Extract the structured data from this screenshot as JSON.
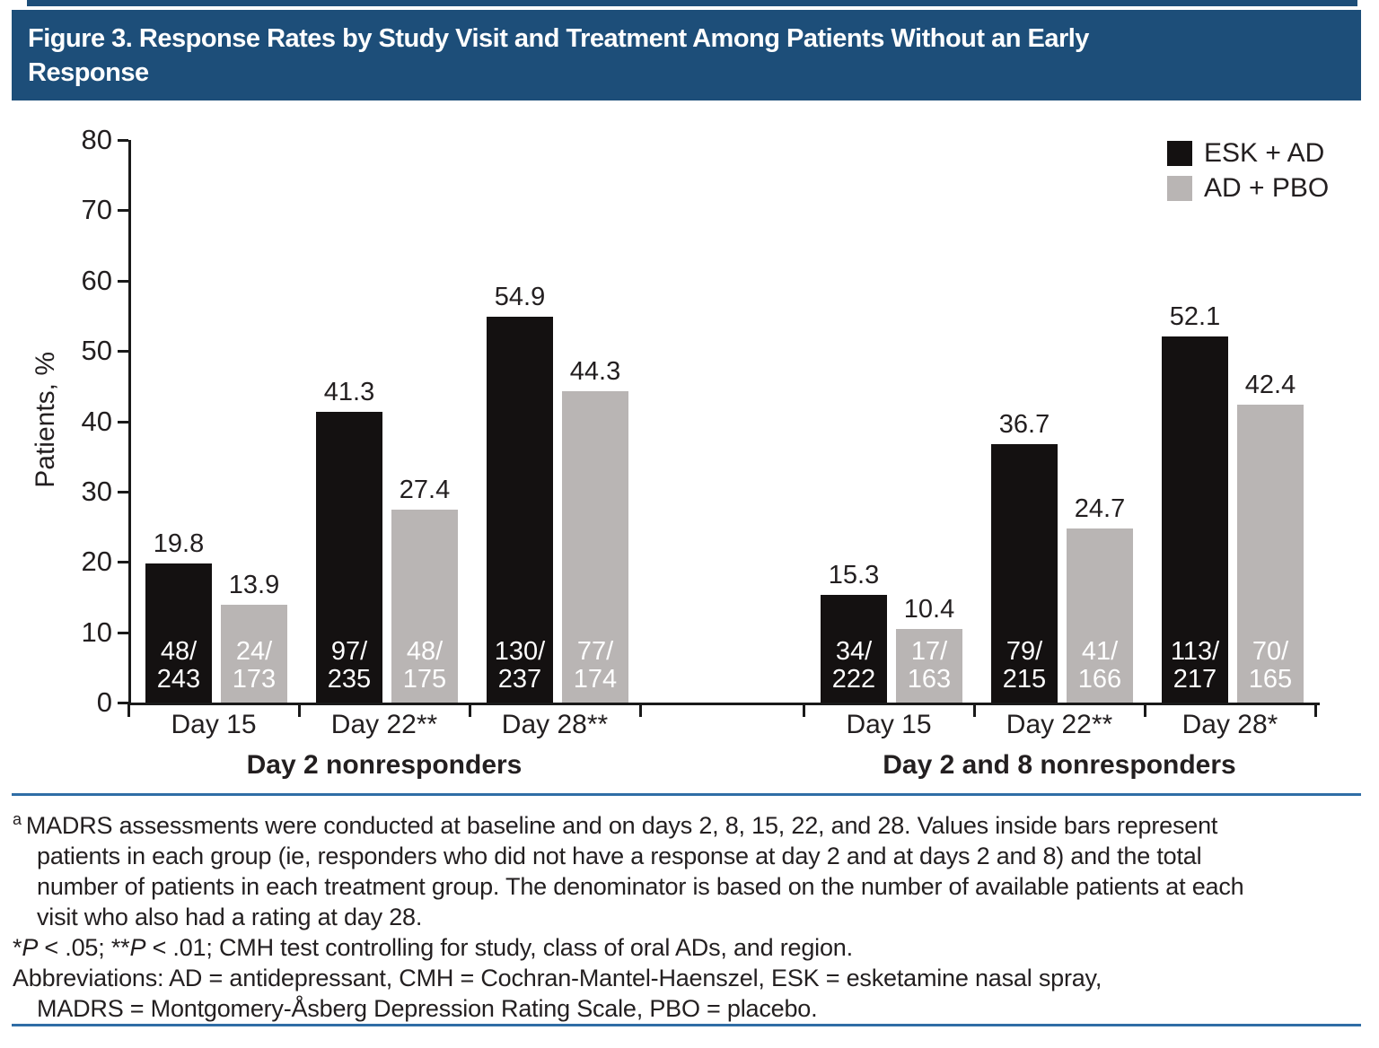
{
  "figure": {
    "title": "Figure 3. Response Rates by Study Visit and Treatment Among Patients Without an Early Response",
    "title_lines": [
      "Figure 3. Response Rates by Study Visit and Treatment Among Patients Without an Early",
      "Response"
    ]
  },
  "colors": {
    "title_bar_blue": "#1d4e79",
    "rule_blue": "#2f6da6",
    "bar_black": "#141111",
    "bar_gray": "#b9b5b4",
    "text_dark": "#231f20"
  },
  "legend": {
    "items": [
      {
        "label": "ESK + AD",
        "color": "#141111"
      },
      {
        "label": "AD + PBO",
        "color": "#b9b5b4"
      }
    ]
  },
  "chart_data": {
    "type": "bar",
    "title": "",
    "xlabel": "",
    "ylabel": "Patients, %",
    "ylim": [
      0,
      80
    ],
    "ytick_step": 10,
    "yticks": [
      0,
      10,
      20,
      30,
      40,
      50,
      60,
      70,
      80
    ],
    "grid": false,
    "legend_position": "top-right",
    "series_names": [
      "ESK + AD",
      "AD + PBO"
    ],
    "groups": [
      {
        "label": "Day 2 nonresponders",
        "visits": [
          {
            "label": "Day 15",
            "bars": [
              {
                "series": "ESK + AD",
                "value": 19.8,
                "label_lines": [
                  "48/",
                  "243"
                ]
              },
              {
                "series": "AD + PBO",
                "value": 13.9,
                "label_lines": [
                  "24/",
                  "173"
                ]
              }
            ]
          },
          {
            "label": "Day 22**",
            "bars": [
              {
                "series": "ESK + AD",
                "value": 41.3,
                "label_lines": [
                  "97/",
                  "235"
                ]
              },
              {
                "series": "AD + PBO",
                "value": 27.4,
                "label_lines": [
                  "48/",
                  "175"
                ]
              }
            ]
          },
          {
            "label": "Day 28**",
            "bars": [
              {
                "series": "ESK + AD",
                "value": 54.9,
                "label_lines": [
                  "130/",
                  "237"
                ]
              },
              {
                "series": "AD + PBO",
                "value": 44.3,
                "label_lines": [
                  "77/",
                  "174"
                ]
              }
            ]
          }
        ]
      },
      {
        "label": "Day 2 and 8 nonresponders",
        "visits": [
          {
            "label": "Day 15",
            "bars": [
              {
                "series": "ESK + AD",
                "value": 15.3,
                "label_lines": [
                  "34/",
                  "222"
                ]
              },
              {
                "series": "AD + PBO",
                "value": 10.4,
                "label_lines": [
                  "17/",
                  "163"
                ]
              }
            ]
          },
          {
            "label": "Day 22**",
            "bars": [
              {
                "series": "ESK + AD",
                "value": 36.7,
                "label_lines": [
                  "79/",
                  "215"
                ]
              },
              {
                "series": "AD + PBO",
                "value": 24.7,
                "label_lines": [
                  "41/",
                  "166"
                ]
              }
            ]
          },
          {
            "label": "Day 28*",
            "bars": [
              {
                "series": "ESK + AD",
                "value": 52.1,
                "label_lines": [
                  "113/",
                  "217"
                ]
              },
              {
                "series": "AD + PBO",
                "value": 42.4,
                "label_lines": [
                  "70/",
                  "165"
                ]
              }
            ]
          }
        ]
      }
    ]
  },
  "footnotes": {
    "note_a_marker": "a",
    "note_a_lines": [
      "MADRS assessments were conducted at baseline and on days 2, 8, 15, 22, and 28. Values inside bars represent",
      "patients in each group (ie, responders who did not have a response at day 2 and at days 2 and 8) and the total",
      "number of patients in each treatment group. The denominator is based on the number of available patients at each",
      "visit who also had a rating at day 28."
    ],
    "stats_note_segments": [
      {
        "text": "*"
      },
      {
        "text": "P",
        "italic": true
      },
      {
        "text": " < .05; **"
      },
      {
        "text": "P",
        "italic": true
      },
      {
        "text": " < .01; CMH test controlling for study, class of oral ADs, and region."
      }
    ],
    "abbreviations_lines": [
      "Abbreviations: AD = antidepressant, CMH = Cochran-Mantel-Haenszel, ESK = esketamine nasal spray,",
      "MADRS = Montgomery-Åsberg Depression Rating Scale, PBO = placebo."
    ]
  }
}
